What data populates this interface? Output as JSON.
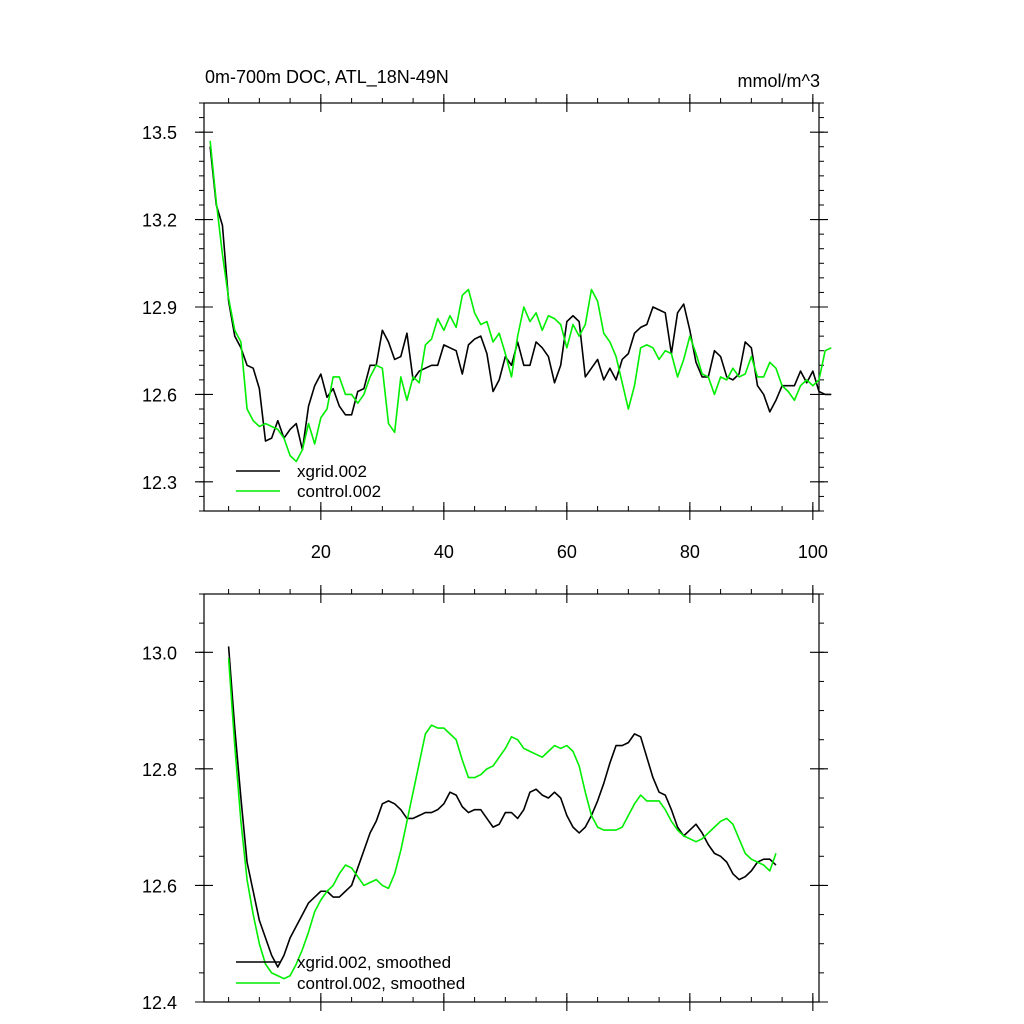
{
  "colors": {
    "xgrid": "#000000",
    "control": "#00ee00",
    "axis": "#000000"
  },
  "chart_data": [
    {
      "type": "line",
      "title": "0m-700m DOC, ATL_18N-49N",
      "units_label": "mmol/m^3",
      "xlim": [
        1,
        101
      ],
      "ylim": [
        12.2,
        13.6
      ],
      "x_ticks": [
        20,
        40,
        60,
        80,
        100
      ],
      "x_minor_step": 5,
      "y_ticks": [
        12.3,
        12.6,
        12.9,
        13.2,
        13.5
      ],
      "y_tick_labels": [
        "12.3",
        "12.6",
        "12.9",
        "13.2",
        "13.5"
      ],
      "y_minor_step": 0.05,
      "legend": "lower-left",
      "x_start": 2,
      "x_step": 1,
      "series": [
        {
          "name": "xgrid.002",
          "color": "#000000",
          "values": [
            13.45,
            13.25,
            13.18,
            12.92,
            12.8,
            12.76,
            12.7,
            12.69,
            12.62,
            12.44,
            12.45,
            12.51,
            12.45,
            12.48,
            12.5,
            12.41,
            12.56,
            12.63,
            12.67,
            12.59,
            12.62,
            12.56,
            12.53,
            12.53,
            12.61,
            12.62,
            12.7,
            12.7,
            12.82,
            12.78,
            12.72,
            12.73,
            12.81,
            12.65,
            12.68,
            12.69,
            12.7,
            12.7,
            12.77,
            12.76,
            12.75,
            12.67,
            12.77,
            12.79,
            12.8,
            12.74,
            12.61,
            12.65,
            12.73,
            12.7,
            12.78,
            12.7,
            12.7,
            12.78,
            12.76,
            12.73,
            12.64,
            12.7,
            12.85,
            12.87,
            12.85,
            12.66,
            12.69,
            12.72,
            12.65,
            12.69,
            12.65,
            12.72,
            12.74,
            12.81,
            12.83,
            12.84,
            12.9,
            12.89,
            12.88,
            12.74,
            12.88,
            12.91,
            12.82,
            12.71,
            12.66,
            12.66,
            12.75,
            12.73,
            12.66,
            12.65,
            12.67,
            12.78,
            12.76,
            12.63,
            12.6,
            12.54,
            12.58,
            12.63,
            12.63,
            12.63,
            12.68,
            12.64,
            12.68,
            12.61,
            12.6,
            12.6
          ]
        },
        {
          "name": "control.002",
          "color": "#00ee00",
          "values": [
            13.47,
            13.26,
            13.08,
            12.93,
            12.82,
            12.78,
            12.55,
            12.51,
            12.49,
            12.5,
            12.49,
            12.48,
            12.45,
            12.39,
            12.37,
            12.41,
            12.5,
            12.43,
            12.52,
            12.55,
            12.66,
            12.66,
            12.6,
            12.6,
            12.57,
            12.6,
            12.66,
            12.7,
            12.69,
            12.5,
            12.47,
            12.66,
            12.58,
            12.66,
            12.64,
            12.77,
            12.79,
            12.86,
            12.82,
            12.87,
            12.83,
            12.94,
            12.96,
            12.88,
            12.84,
            12.85,
            12.78,
            12.81,
            12.74,
            12.66,
            12.8,
            12.9,
            12.85,
            12.88,
            12.82,
            12.87,
            12.86,
            12.84,
            12.76,
            12.84,
            12.8,
            12.84,
            12.96,
            12.92,
            12.81,
            12.78,
            12.73,
            12.64,
            12.55,
            12.63,
            12.76,
            12.77,
            12.76,
            12.72,
            12.75,
            12.74,
            12.66,
            12.72,
            12.8,
            12.74,
            12.67,
            12.66,
            12.6,
            12.66,
            12.65,
            12.69,
            12.66,
            12.67,
            12.73,
            12.66,
            12.66,
            12.71,
            12.69,
            12.63,
            12.61,
            12.58,
            12.63,
            12.65,
            12.63,
            12.65,
            12.75,
            12.76
          ]
        }
      ]
    },
    {
      "type": "line",
      "title": "",
      "xlim": [
        1,
        101
      ],
      "ylim": [
        12.4,
        13.1
      ],
      "x_ticks": [
        20,
        40,
        60,
        80,
        100
      ],
      "x_minor_step": 5,
      "y_ticks": [
        12.4,
        12.6,
        12.8,
        13.0
      ],
      "y_tick_labels": [
        "12.4",
        "12.6",
        "12.8",
        "13.0"
      ],
      "y_minor_step": 0.05,
      "legend": "lower-left",
      "x_start": 5,
      "x_step": 1,
      "series": [
        {
          "name": "xgrid.002, smoothed",
          "color": "#000000",
          "values": [
            13.01,
            12.87,
            12.75,
            12.64,
            12.59,
            12.54,
            12.51,
            12.48,
            12.46,
            12.48,
            12.51,
            12.53,
            12.55,
            12.57,
            12.58,
            12.59,
            12.59,
            12.58,
            12.58,
            12.59,
            12.6,
            12.63,
            12.66,
            12.69,
            12.71,
            12.74,
            12.745,
            12.74,
            12.73,
            12.715,
            12.715,
            12.72,
            12.725,
            12.725,
            12.73,
            12.74,
            12.76,
            12.755,
            12.735,
            12.725,
            12.73,
            12.73,
            12.715,
            12.7,
            12.705,
            12.725,
            12.725,
            12.715,
            12.73,
            12.76,
            12.765,
            12.755,
            12.75,
            12.76,
            12.75,
            12.72,
            12.7,
            12.69,
            12.7,
            12.72,
            12.745,
            12.775,
            12.81,
            12.84,
            12.84,
            12.845,
            12.86,
            12.855,
            12.82,
            12.785,
            12.76,
            12.755,
            12.73,
            12.7,
            12.685,
            12.695,
            12.705,
            12.69,
            12.67,
            12.655,
            12.65,
            12.64,
            12.62,
            12.61,
            12.615,
            12.625,
            12.64,
            12.645,
            12.645,
            12.635
          ]
        },
        {
          "name": "control.002, smoothed",
          "color": "#00ee00",
          "values": [
            12.99,
            12.84,
            12.71,
            12.61,
            12.55,
            12.5,
            12.465,
            12.45,
            12.445,
            12.44,
            12.445,
            12.465,
            12.49,
            12.52,
            12.555,
            12.575,
            12.59,
            12.6,
            12.62,
            12.635,
            12.63,
            12.615,
            12.6,
            12.605,
            12.61,
            12.6,
            12.595,
            12.62,
            12.66,
            12.71,
            12.76,
            12.81,
            12.86,
            12.875,
            12.87,
            12.87,
            12.86,
            12.85,
            12.815,
            12.785,
            12.785,
            12.79,
            12.8,
            12.805,
            12.82,
            12.835,
            12.855,
            12.85,
            12.835,
            12.83,
            12.825,
            12.82,
            12.83,
            12.84,
            12.835,
            12.84,
            12.83,
            12.805,
            12.76,
            12.72,
            12.7,
            12.695,
            12.695,
            12.695,
            12.7,
            12.72,
            12.74,
            12.755,
            12.745,
            12.745,
            12.745,
            12.73,
            12.71,
            12.695,
            12.685,
            12.68,
            12.675,
            12.68,
            12.69,
            12.7,
            12.71,
            12.715,
            12.705,
            12.68,
            12.655,
            12.645,
            12.64,
            12.635,
            12.625,
            12.655
          ]
        }
      ]
    }
  ]
}
